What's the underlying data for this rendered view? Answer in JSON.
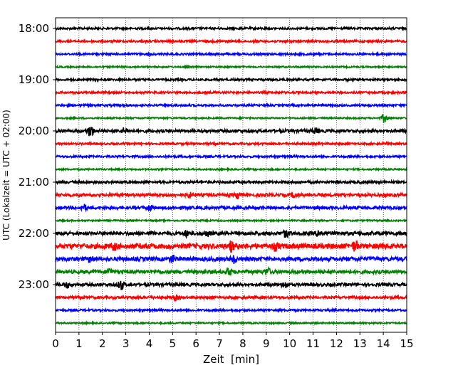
{
  "chart_data": {
    "type": "line",
    "title": "",
    "xlabel": "Zeit  [min]",
    "ylabel": "UTC (Lokalzeit = UTC + 02:00)",
    "xlim": [
      0,
      15
    ],
    "x_ticks": [
      "0",
      "1",
      "2",
      "3",
      "4",
      "5",
      "6",
      "7",
      "8",
      "9",
      "10",
      "11",
      "12",
      "13",
      "14",
      "15"
    ],
    "y_ticks": [
      "18:00",
      "19:00",
      "20:00",
      "21:00",
      "22:00",
      "23:00"
    ],
    "grid": "vertical dotted lines at each minute",
    "colors": [
      "#000000",
      "#ff0000",
      "#0000ff",
      "#008000"
    ],
    "traces": [
      {
        "start": "18:00",
        "color": "#000000",
        "amplitude": 0.2
      },
      {
        "start": "18:15",
        "color": "#ff0000",
        "amplitude": 0.2
      },
      {
        "start": "18:30",
        "color": "#0000ff",
        "amplitude": 0.2
      },
      {
        "start": "18:45",
        "color": "#008000",
        "amplitude": 0.15
      },
      {
        "start": "19:00",
        "color": "#000000",
        "amplitude": 0.2
      },
      {
        "start": "19:15",
        "color": "#ff0000",
        "amplitude": 0.2
      },
      {
        "start": "19:30",
        "color": "#0000ff",
        "amplitude": 0.2
      },
      {
        "start": "19:45",
        "color": "#008000",
        "amplitude": 0.15
      },
      {
        "start": "20:00",
        "color": "#000000",
        "amplitude": 0.3
      },
      {
        "start": "20:15",
        "color": "#ff0000",
        "amplitude": 0.2
      },
      {
        "start": "20:30",
        "color": "#0000ff",
        "amplitude": 0.2
      },
      {
        "start": "20:45",
        "color": "#008000",
        "amplitude": 0.15
      },
      {
        "start": "21:00",
        "color": "#000000",
        "amplitude": 0.25
      },
      {
        "start": "21:15",
        "color": "#ff0000",
        "amplitude": 0.3
      },
      {
        "start": "21:30",
        "color": "#0000ff",
        "amplitude": 0.3
      },
      {
        "start": "21:45",
        "color": "#008000",
        "amplitude": 0.15
      },
      {
        "start": "22:00",
        "color": "#000000",
        "amplitude": 0.35
      },
      {
        "start": "22:15",
        "color": "#ff0000",
        "amplitude": 0.5
      },
      {
        "start": "22:30",
        "color": "#0000ff",
        "amplitude": 0.4
      },
      {
        "start": "22:45",
        "color": "#008000",
        "amplitude": 0.35
      },
      {
        "start": "23:00",
        "color": "#000000",
        "amplitude": 0.3
      },
      {
        "start": "23:15",
        "color": "#ff0000",
        "amplitude": 0.25
      },
      {
        "start": "23:30",
        "color": "#0000ff",
        "amplitude": 0.2
      },
      {
        "start": "23:45",
        "color": "#008000",
        "amplitude": 0.15
      }
    ],
    "bursts": [
      {
        "trace": 8,
        "x": 1.5,
        "amp": 1.1
      },
      {
        "trace": 8,
        "x": 2.95,
        "amp": 0.5
      },
      {
        "trace": 8,
        "x": 11.1,
        "amp": 0.45
      },
      {
        "trace": 7,
        "x": 14.05,
        "amp": 0.9
      },
      {
        "trace": 13,
        "x": 7.8,
        "amp": 0.6
      },
      {
        "trace": 13,
        "x": 5.7,
        "amp": 0.45
      },
      {
        "trace": 13,
        "x": 10.2,
        "amp": 0.45
      },
      {
        "trace": 14,
        "x": 1.2,
        "amp": 0.55
      },
      {
        "trace": 14,
        "x": 4.0,
        "amp": 0.5
      },
      {
        "trace": 16,
        "x": 9.85,
        "amp": 0.7
      },
      {
        "trace": 16,
        "x": 11.25,
        "amp": 0.6
      },
      {
        "trace": 16,
        "x": 5.6,
        "amp": 0.5
      },
      {
        "trace": 16,
        "x": 6.5,
        "amp": 0.45
      },
      {
        "trace": 17,
        "x": 7.5,
        "amp": 0.8
      },
      {
        "trace": 17,
        "x": 12.8,
        "amp": 0.8
      },
      {
        "trace": 17,
        "x": 2.5,
        "amp": 0.55
      },
      {
        "trace": 17,
        "x": 9.4,
        "amp": 0.6
      },
      {
        "trace": 18,
        "x": 7.6,
        "amp": 0.7
      },
      {
        "trace": 18,
        "x": 5.0,
        "amp": 0.55
      },
      {
        "trace": 18,
        "x": 1.5,
        "amp": 0.5
      },
      {
        "trace": 19,
        "x": 7.4,
        "amp": 0.7
      },
      {
        "trace": 19,
        "x": 9.05,
        "amp": 0.65
      },
      {
        "trace": 19,
        "x": 2.3,
        "amp": 0.55
      },
      {
        "trace": 20,
        "x": 2.8,
        "amp": 0.9
      },
      {
        "trace": 20,
        "x": 9.8,
        "amp": 0.6
      },
      {
        "trace": 20,
        "x": 0.5,
        "amp": 0.5
      },
      {
        "trace": 21,
        "x": 5.15,
        "amp": 0.4
      }
    ]
  }
}
